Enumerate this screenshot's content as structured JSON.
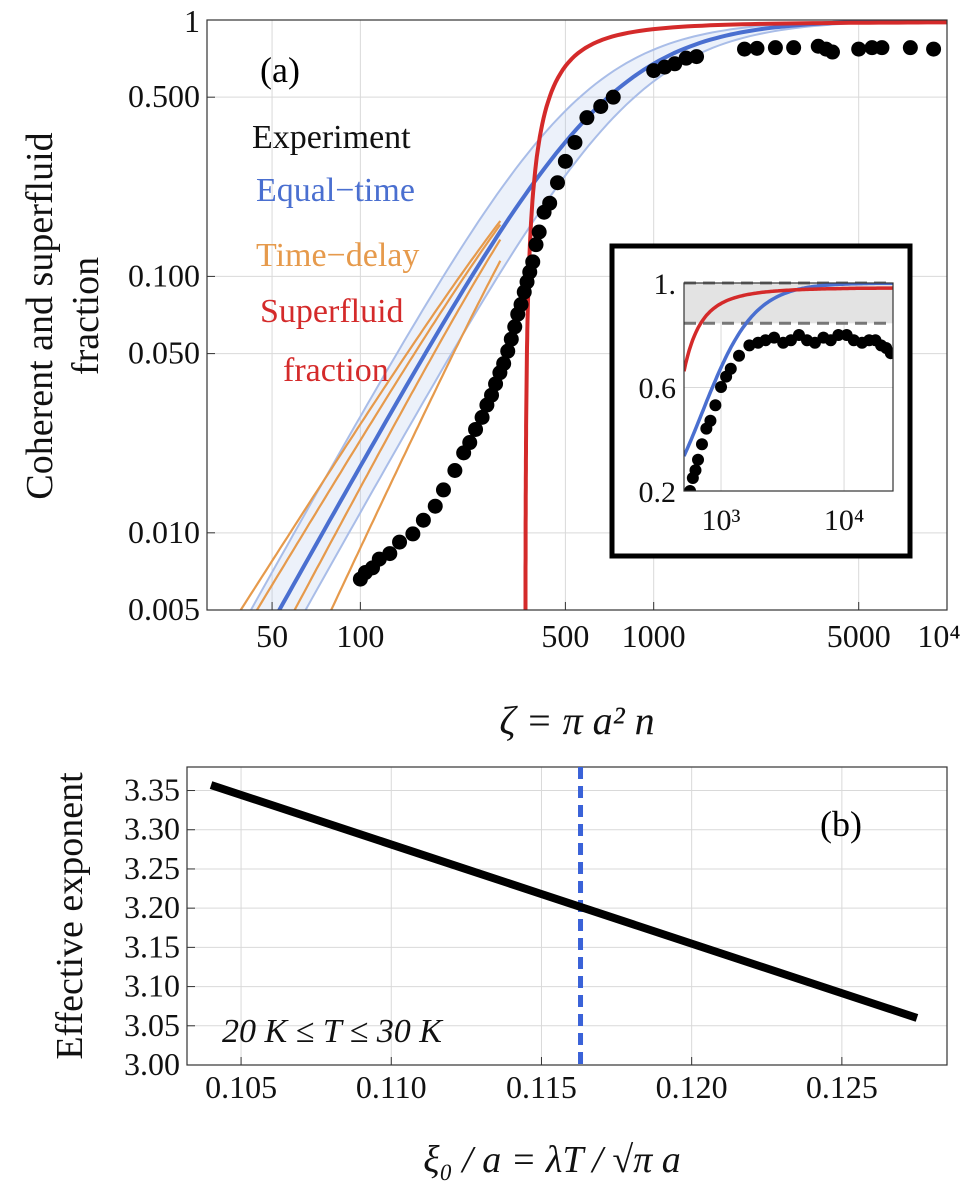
{
  "figure": {
    "panel_a_label": "(a)",
    "panel_b_label": "(b)",
    "panel_a_ylabel_line1": "Coherent and superfluid",
    "panel_a_ylabel_line2": "fraction",
    "panel_a_xlabel": "ζ = π a² n",
    "panel_b_ylabel": "Effective exponent",
    "panel_b_xlabel": "ξ₀ / a = λT / √π a",
    "panel_b_annotation": "20 K ≤ T ≤ 30 K"
  },
  "legend": {
    "experiment": "Experiment",
    "equal_time": "Equal−time",
    "time_delay": "Time−delay",
    "superfluid_line1": "Superfluid",
    "superfluid_line2": "fraction"
  },
  "colors": {
    "experiment": "#000000",
    "equal_time": "#4a6fd0",
    "equal_time_band": "#a9bde8",
    "time_delay": "#e69a4c",
    "superfluid": "#d42a2a",
    "inset_band": "#e3e3e3",
    "vline": "#3a62d8"
  },
  "chart_data": [
    {
      "id": "panel-a",
      "type": "scatter",
      "xscale": "log",
      "yscale": "log",
      "xlim": [
        30,
        10000
      ],
      "ylim": [
        0.005,
        1
      ],
      "xlabel": "ζ = π a² n",
      "ylabel": "Coherent and superfluid fraction",
      "x_ticks": [
        50,
        100,
        500,
        1000,
        5000,
        10000
      ],
      "x_tick_labels": [
        "50",
        "100",
        "500",
        "1000",
        "5000",
        "10⁴"
      ],
      "y_ticks": [
        0.005,
        0.01,
        0.05,
        0.1,
        0.5,
        1
      ],
      "y_tick_labels": [
        "0.005",
        "0.010",
        "0.050",
        "0.100",
        "0.500",
        "1"
      ],
      "series": [
        {
          "name": "Experiment",
          "kind": "points",
          "x": [
            100,
            104,
            110,
            116,
            126,
            136,
            151,
            164,
            180,
            192,
            210,
            225,
            236,
            247,
            260,
            270,
            280,
            289,
            299,
            308,
            318,
            327,
            336,
            344,
            353,
            362,
            370,
            378,
            387,
            397,
            407,
            423,
            442,
            470,
            500,
            539,
            592,
            660,
            728,
            1000,
            1090,
            1180,
            1290,
            1400,
            2040,
            2250,
            2600,
            3000,
            3640,
            3870,
            4070,
            5000,
            5550,
            6000,
            7500,
            9000
          ],
          "y": [
            0.0066,
            0.007,
            0.0073,
            0.0079,
            0.0083,
            0.0092,
            0.0099,
            0.0112,
            0.0127,
            0.0147,
            0.0175,
            0.0205,
            0.0225,
            0.0253,
            0.0282,
            0.0315,
            0.0344,
            0.0381,
            0.0421,
            0.0457,
            0.0511,
            0.0569,
            0.0636,
            0.0712,
            0.0777,
            0.0869,
            0.0952,
            0.104,
            0.114,
            0.133,
            0.149,
            0.178,
            0.193,
            0.232,
            0.281,
            0.333,
            0.416,
            0.46,
            0.5,
            0.635,
            0.655,
            0.675,
            0.71,
            0.72,
            0.77,
            0.775,
            0.78,
            0.78,
            0.79,
            0.77,
            0.75,
            0.77,
            0.78,
            0.78,
            0.78,
            0.77
          ]
        },
        {
          "name": "Equal−time",
          "kind": "curve",
          "model": "1/(1 + (xc/x)^p)",
          "xc": 700,
          "p": 2.05,
          "x_start": 35,
          "x_end": 10000
        },
        {
          "name": "Equal−time band",
          "kind": "band",
          "lower": {
            "xc": 860,
            "p": 2.05
          },
          "upper": {
            "xc": 560,
            "p": 2.05
          }
        },
        {
          "name": "Time−delay",
          "kind": "curves",
          "curves": [
            {
              "xc": 740,
              "p": 1.8,
              "x_start": 30,
              "x_end": 300
            },
            {
              "xc": 720,
              "p": 1.9,
              "x_start": 42,
              "x_end": 300
            },
            {
              "xc": 700,
              "p": 2.15,
              "x_start": 58,
              "x_end": 300
            },
            {
              "xc": 690,
              "p": 2.45,
              "x_start": 74,
              "x_end": 300
            }
          ]
        },
        {
          "name": "Superfluid fraction",
          "kind": "curve",
          "model": "1 - exp(-k*(x-x0)/x)",
          "x0": 365,
          "k": 4,
          "x_start": 366,
          "x_end": 10000
        }
      ]
    },
    {
      "id": "panel-a-inset",
      "type": "scatter",
      "xscale": "log",
      "yscale": "linear",
      "xlim": [
        500,
        25000
      ],
      "ylim": [
        0.2,
        1.0
      ],
      "x_ticks": [
        1000,
        10000
      ],
      "x_tick_labels": [
        "10³",
        "10⁴"
      ],
      "y_ticks": [
        0.2,
        0.6,
        1.0
      ],
      "y_tick_labels": [
        "0.2",
        "0.6",
        "1."
      ],
      "band_y": [
        0.845,
        1.0
      ],
      "points_x": [
        560,
        590,
        620,
        650,
        700,
        760,
        820,
        900,
        1000,
        1100,
        1200,
        1400,
        1700,
        2000,
        2300,
        2700,
        3200,
        3700,
        4300,
        5000,
        5800,
        6800,
        7800,
        9000,
        10500,
        12000,
        14000,
        16000,
        18000,
        20000,
        22000,
        24000
      ],
      "points_y": [
        0.2,
        0.25,
        0.28,
        0.32,
        0.38,
        0.44,
        0.47,
        0.53,
        0.6,
        0.64,
        0.67,
        0.72,
        0.76,
        0.77,
        0.78,
        0.79,
        0.77,
        0.78,
        0.8,
        0.78,
        0.77,
        0.79,
        0.78,
        0.8,
        0.8,
        0.78,
        0.77,
        0.78,
        0.78,
        0.76,
        0.75,
        0.73
      ]
    },
    {
      "id": "panel-b",
      "type": "line",
      "xlim": [
        0.1032,
        0.1285
      ],
      "ylim": [
        3.0,
        3.38
      ],
      "xlabel": "ξ₀ / a = λT / √π a",
      "ylabel": "Effective exponent",
      "x_ticks": [
        0.105,
        0.11,
        0.115,
        0.12,
        0.125
      ],
      "x_tick_labels": [
        "0.105",
        "0.110",
        "0.115",
        "0.120",
        "0.125"
      ],
      "y_ticks": [
        3.0,
        3.05,
        3.1,
        3.15,
        3.2,
        3.25,
        3.3,
        3.35
      ],
      "y_tick_labels": [
        "3.00",
        "3.05",
        "3.10",
        "3.15",
        "3.20",
        "3.25",
        "3.30",
        "3.35"
      ],
      "x": [
        0.104,
        0.1275
      ],
      "y": [
        3.357,
        3.06
      ],
      "vline_x": 0.1163
    }
  ]
}
